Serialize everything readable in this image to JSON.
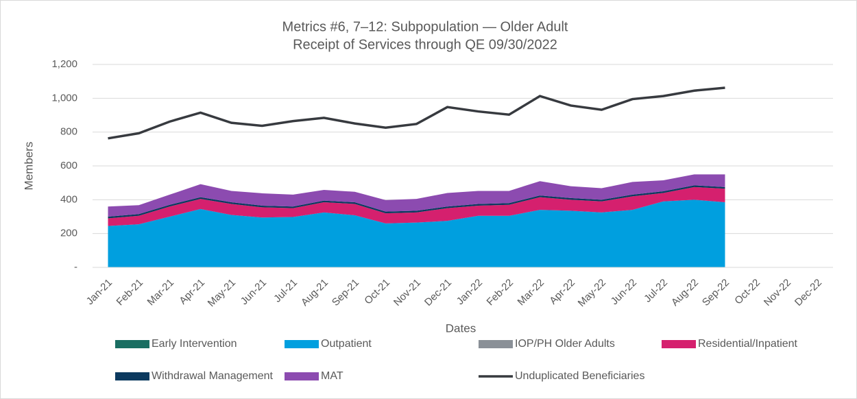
{
  "chart_data": {
    "type": "stacked-area-line",
    "title": [
      "Metrics #6, 7–12: Subpopulation — Older Adult",
      "Receipt of Services through QE 09/30/2022"
    ],
    "x_label": "Dates",
    "y_label": "Members",
    "categories": [
      "Jan-21",
      "Feb-21",
      "Mar-21",
      "Apr-21",
      "May-21",
      "Jun-21",
      "Jul-21",
      "Aug-21",
      "Sep-21",
      "Oct-21",
      "Nov-21",
      "Dec-21",
      "Jan-22",
      "Feb-22",
      "Mar-22",
      "Apr-22",
      "May-22",
      "Jun-22",
      "Jul-22",
      "Aug-22",
      "Sep-22",
      "Oct-22",
      "Nov-22",
      "Dec-22"
    ],
    "ylim": [
      0,
      1200
    ],
    "yticks": [
      {
        "value": 0,
        "label": "-"
      },
      200,
      400,
      600,
      800,
      {
        "value": 1000,
        "label": "1,000"
      },
      {
        "value": 1200,
        "label": "1,200"
      }
    ],
    "grid": true,
    "series": [
      {
        "name": "Early Intervention",
        "color": "#1a6e62",
        "kind": "area",
        "values": [
          0,
          0,
          0,
          0,
          0,
          0,
          0,
          0,
          0,
          0,
          0,
          0,
          0,
          0,
          0,
          0,
          0,
          0,
          0,
          0,
          0,
          null,
          null,
          null
        ]
      },
      {
        "name": "Outpatient",
        "color": "#009fdf",
        "kind": "area",
        "values": [
          245,
          255,
          300,
          345,
          310,
          295,
          298,
          325,
          308,
          260,
          265,
          275,
          305,
          305,
          340,
          335,
          325,
          340,
          390,
          400,
          385,
          null,
          null,
          null
        ]
      },
      {
        "name": "IOP/PH Older Adults",
        "color": "#8a9097",
        "kind": "area",
        "values": [
          0,
          0,
          0,
          0,
          0,
          0,
          0,
          0,
          0,
          0,
          0,
          0,
          0,
          0,
          0,
          0,
          0,
          0,
          0,
          0,
          0,
          null,
          null,
          null
        ]
      },
      {
        "name": "Residential/Inpatient",
        "color": "#d5206e",
        "kind": "area",
        "values": [
          45,
          50,
          60,
          60,
          65,
          60,
          52,
          60,
          67,
          60,
          60,
          75,
          60,
          65,
          75,
          65,
          65,
          80,
          50,
          75,
          80,
          null,
          null,
          null
        ]
      },
      {
        "name": "Withdrawal Management",
        "color": "#0c3a5f",
        "kind": "area",
        "values": [
          10,
          10,
          10,
          10,
          10,
          10,
          10,
          10,
          10,
          10,
          10,
          10,
          10,
          10,
          10,
          10,
          10,
          10,
          10,
          10,
          10,
          null,
          null,
          null
        ]
      },
      {
        "name": "MAT",
        "color": "#8c4bb0",
        "kind": "area",
        "values": [
          60,
          53,
          60,
          77,
          67,
          73,
          70,
          63,
          62,
          68,
          70,
          80,
          77,
          72,
          85,
          70,
          68,
          75,
          65,
          65,
          75,
          null,
          null,
          null
        ]
      },
      {
        "name": "Unduplicated Beneficiaries",
        "color": "#373a3f",
        "kind": "line",
        "values": [
          763,
          793,
          862,
          915,
          855,
          837,
          865,
          884,
          851,
          826,
          848,
          948,
          922,
          903,
          1013,
          957,
          932,
          995,
          1013,
          1045,
          1062,
          null,
          null,
          null
        ]
      }
    ]
  }
}
